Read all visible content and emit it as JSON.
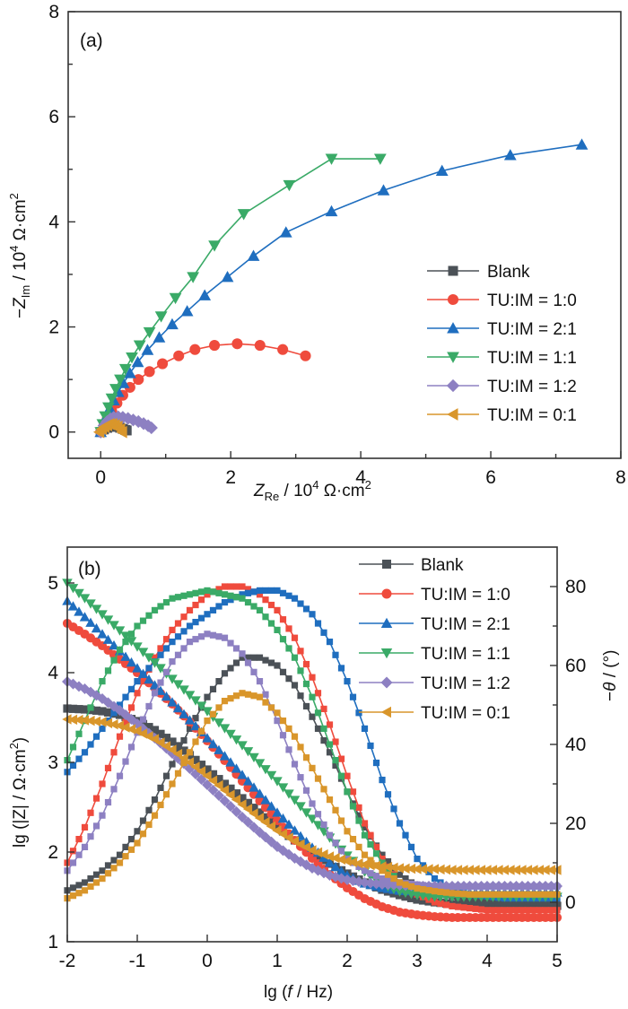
{
  "chart_data": [
    {
      "panel": "(a)",
      "type": "scatter",
      "title": "",
      "xlabel": "Z_Re / 10^4 Ω·cm^2",
      "ylabel": "−Z_Im / 10^4 Ω·cm^2",
      "xlim": [
        -0.5,
        8
      ],
      "ylim": [
        -0.5,
        8
      ],
      "xticks": [
        "0",
        "2",
        "4",
        "6",
        "8"
      ],
      "yticks": [
        "0",
        "2",
        "4",
        "6",
        "8"
      ],
      "legend_position": "center-right",
      "grid": false,
      "series": [
        {
          "name": "Blank",
          "color": "#4b5157",
          "marker": "square",
          "x": [
            0.0,
            0.05,
            0.1,
            0.15,
            0.2,
            0.25,
            0.3,
            0.34,
            0.38,
            0.4
          ],
          "y": [
            0.0,
            0.05,
            0.08,
            0.1,
            0.11,
            0.1,
            0.08,
            0.06,
            0.04,
            0.03
          ]
        },
        {
          "name": "TU:IM = 1:0",
          "color": "#ef4b3d",
          "marker": "circle",
          "x": [
            0.0,
            0.05,
            0.1,
            0.17,
            0.25,
            0.34,
            0.45,
            0.58,
            0.75,
            0.95,
            1.2,
            1.45,
            1.75,
            2.1,
            2.45,
            2.8,
            3.15
          ],
          "y": [
            0.0,
            0.12,
            0.25,
            0.4,
            0.55,
            0.7,
            0.85,
            1.0,
            1.15,
            1.3,
            1.45,
            1.57,
            1.65,
            1.68,
            1.65,
            1.57,
            1.45
          ]
        },
        {
          "name": "TU:IM = 2:1",
          "color": "#1f6ebf",
          "marker": "triangle-up",
          "x": [
            0.0,
            0.04,
            0.09,
            0.14,
            0.2,
            0.27,
            0.35,
            0.45,
            0.57,
            0.72,
            0.9,
            1.1,
            1.33,
            1.6,
            1.95,
            2.35,
            2.85,
            3.55,
            4.35,
            5.25,
            6.3,
            7.4
          ],
          "y": [
            0.0,
            0.15,
            0.3,
            0.45,
            0.6,
            0.76,
            0.93,
            1.12,
            1.33,
            1.56,
            1.8,
            2.05,
            2.3,
            2.6,
            2.95,
            3.35,
            3.8,
            4.2,
            4.6,
            4.97,
            5.27,
            5.47
          ]
        },
        {
          "name": "TU:IM = 1:1",
          "color": "#3aaa67",
          "marker": "triangle-down",
          "x": [
            0.0,
            0.03,
            0.07,
            0.12,
            0.17,
            0.23,
            0.3,
            0.38,
            0.48,
            0.6,
            0.75,
            0.93,
            1.15,
            1.42,
            1.75,
            2.2,
            2.9,
            3.55,
            4.3
          ],
          "y": [
            0.0,
            0.15,
            0.3,
            0.47,
            0.64,
            0.82,
            1.0,
            1.2,
            1.42,
            1.65,
            1.9,
            2.2,
            2.55,
            2.95,
            3.55,
            4.15,
            4.7,
            5.2,
            5.2
          ]
        },
        {
          "name": "TU:IM = 1:2",
          "color": "#8d80c2",
          "marker": "diamond",
          "x": [
            0.0,
            0.05,
            0.1,
            0.15,
            0.2,
            0.27,
            0.34,
            0.42,
            0.5,
            0.58,
            0.66,
            0.73,
            0.78
          ],
          "y": [
            0.0,
            0.12,
            0.2,
            0.25,
            0.28,
            0.29,
            0.28,
            0.26,
            0.23,
            0.2,
            0.16,
            0.12,
            0.08
          ]
        },
        {
          "name": "TU:IM = 0:1",
          "color": "#d9962b",
          "marker": "triangle-left",
          "x": [
            -0.02,
            0.02,
            0.06,
            0.1,
            0.14,
            0.18,
            0.22,
            0.26,
            0.3,
            0.33
          ],
          "y": [
            0.0,
            0.06,
            0.1,
            0.13,
            0.15,
            0.15,
            0.13,
            0.1,
            0.05,
            0.0
          ]
        }
      ]
    },
    {
      "panel": "(b)",
      "type": "line",
      "title": "",
      "xlabel": "lg (f / Hz)",
      "ylabel": "lg (|Z| / Ω·cm^2)",
      "y2label": "−θ / (°)",
      "xlim": [
        -2,
        5
      ],
      "ylim": [
        1,
        5.4
      ],
      "y2lim": [
        -10,
        90
      ],
      "xticks": [
        "-2",
        "-1",
        "0",
        "1",
        "2",
        "3",
        "4",
        "5"
      ],
      "yticks": [
        "1",
        "2",
        "3",
        "4",
        "5"
      ],
      "y2ticks": [
        "0",
        "20",
        "40",
        "60",
        "80"
      ],
      "legend_position": "top-right",
      "grid": false,
      "x": [
        -2.0,
        -1.75,
        -1.5,
        -1.25,
        -1.0,
        -0.75,
        -0.5,
        -0.25,
        0.0,
        0.25,
        0.5,
        0.75,
        1.0,
        1.25,
        1.5,
        1.75,
        2.0,
        2.25,
        2.5,
        2.75,
        3.0,
        3.25,
        3.5,
        3.75,
        4.0,
        4.25,
        4.5,
        4.75,
        5.0
      ],
      "series": [
        {
          "name": "Blank",
          "color": "#4b5157",
          "magnitude_marker": "square",
          "lgZ": [
            3.6,
            3.59,
            3.57,
            3.53,
            3.46,
            3.36,
            3.23,
            3.08,
            2.92,
            2.76,
            2.6,
            2.44,
            2.28,
            2.13,
            1.99,
            1.87,
            1.76,
            1.66,
            1.58,
            1.52,
            1.47,
            1.44,
            1.42,
            1.41,
            1.4,
            1.4,
            1.4,
            1.4,
            1.4
          ],
          "phase": [
            3,
            5,
            8,
            12,
            18,
            26,
            35,
            44,
            52,
            58,
            62,
            62,
            60,
            55,
            47,
            38,
            28,
            19,
            12,
            7,
            4,
            2.5,
            1.5,
            1,
            0.5,
            0.3,
            0.2,
            0.1,
            0
          ]
        },
        {
          "name": "TU:IM = 1:0",
          "color": "#ef4b3d",
          "magnitude_marker": "circle",
          "lgZ": [
            4.55,
            4.43,
            4.3,
            4.15,
            4.0,
            3.83,
            3.65,
            3.45,
            3.24,
            3.02,
            2.79,
            2.57,
            2.35,
            2.13,
            1.93,
            1.75,
            1.6,
            1.48,
            1.39,
            1.33,
            1.3,
            1.28,
            1.27,
            1.27,
            1.27,
            1.27,
            1.27,
            1.27,
            1.27
          ],
          "phase": [
            10,
            19,
            30,
            42,
            53,
            62,
            69,
            74,
            78,
            80,
            80,
            78,
            74,
            67,
            57,
            45,
            32,
            20,
            11,
            5,
            2,
            0,
            -1,
            -1.5,
            -2,
            -2,
            -2,
            -2,
            -2
          ]
        },
        {
          "name": "TU:IM = 2:1",
          "color": "#1f6ebf",
          "magnitude_marker": "triangle-up",
          "lgZ": [
            4.8,
            4.62,
            4.43,
            4.24,
            4.05,
            3.86,
            3.67,
            3.47,
            3.27,
            3.07,
            2.86,
            2.65,
            2.44,
            2.24,
            2.05,
            1.88,
            1.74,
            1.65,
            1.6,
            1.57,
            1.56,
            1.55,
            1.55,
            1.55,
            1.55,
            1.55,
            1.55,
            1.55,
            1.55
          ],
          "phase": [
            33,
            38,
            44,
            50,
            56,
            61,
            66,
            70,
            73,
            76,
            78,
            79,
            79,
            77,
            73,
            66,
            56,
            44,
            31,
            20,
            11,
            6,
            3,
            2,
            1.5,
            1,
            1,
            1,
            1
          ]
        },
        {
          "name": "TU:IM = 1:1",
          "color": "#3aaa67",
          "magnitude_marker": "triangle-down",
          "lgZ": [
            5.0,
            4.83,
            4.65,
            4.47,
            4.29,
            4.11,
            3.93,
            3.75,
            3.57,
            3.38,
            3.19,
            2.99,
            2.79,
            2.58,
            2.37,
            2.16,
            1.96,
            1.78,
            1.64,
            1.56,
            1.52,
            1.5,
            1.5,
            1.5,
            1.5,
            1.5,
            1.5,
            1.5,
            1.5
          ],
          "phase": [
            36,
            46,
            56,
            64,
            70,
            74,
            77,
            78,
            79,
            78,
            77,
            74,
            69,
            62,
            52,
            40,
            28,
            17,
            10,
            5,
            3,
            2,
            2,
            2,
            2,
            2,
            2,
            2,
            2
          ]
        },
        {
          "name": "TU:IM = 1:2",
          "color": "#8d80c2",
          "magnitude_marker": "diamond",
          "lgZ": [
            3.9,
            3.82,
            3.71,
            3.58,
            3.43,
            3.27,
            3.1,
            2.93,
            2.75,
            2.57,
            2.39,
            2.22,
            2.06,
            1.93,
            1.82,
            1.74,
            1.69,
            1.66,
            1.64,
            1.63,
            1.62,
            1.62,
            1.62,
            1.62,
            1.62,
            1.62,
            1.62,
            1.62,
            1.62
          ],
          "phase": [
            8,
            14,
            22,
            32,
            43,
            53,
            61,
            66,
            68,
            67,
            63,
            56,
            46,
            35,
            25,
            17,
            11,
            8,
            6,
            5,
            4.5,
            4,
            4,
            4,
            4,
            4,
            4,
            4,
            4
          ]
        },
        {
          "name": "TU:IM = 0:1",
          "color": "#d9962b",
          "magnitude_marker": "triangle-left",
          "lgZ": [
            3.48,
            3.47,
            3.45,
            3.41,
            3.35,
            3.26,
            3.14,
            3.0,
            2.85,
            2.69,
            2.53,
            2.38,
            2.24,
            2.12,
            2.02,
            1.95,
            1.9,
            1.86,
            1.84,
            1.82,
            1.81,
            1.81,
            1.8,
            1.8,
            1.8,
            1.8,
            1.8,
            1.8,
            1.8
          ],
          "phase": [
            1,
            3,
            6,
            10,
            15,
            22,
            30,
            38,
            46,
            51,
            53,
            52,
            48,
            42,
            34,
            26,
            18,
            12,
            8,
            5,
            3.5,
            2.8,
            2.3,
            2,
            2,
            2,
            2,
            2,
            2
          ]
        }
      ]
    }
  ],
  "labels": {
    "panel_a": "(a)",
    "panel_b": "(b)",
    "a_xlabel_main": "Z",
    "a_xlabel_sub": "Re",
    "a_xlabel_rest": " / 10",
    "a_xlabel_exp": "4",
    "a_xlabel_unit": " Ω·cm",
    "a_xlabel_unit_exp": "2",
    "a_ylabel_minus": "−",
    "a_ylabel_main": "Z",
    "a_ylabel_sub": "Im",
    "a_ylabel_rest": " / 10",
    "a_ylabel_exp": "4",
    "a_ylabel_unit": " Ω·cm",
    "a_ylabel_unit_exp": "2",
    "b_ylabel_main": "lg (|Z| / Ω·cm",
    "b_ylabel_exp": "2",
    "b_ylabel_close": ")",
    "b_y2label_minus": "−",
    "b_y2label_theta": "θ",
    "b_y2label_rest": " / (°)",
    "b_xlabel_pre": "lg (",
    "b_xlabel_f": "f",
    "b_xlabel_post": " / Hz)"
  }
}
